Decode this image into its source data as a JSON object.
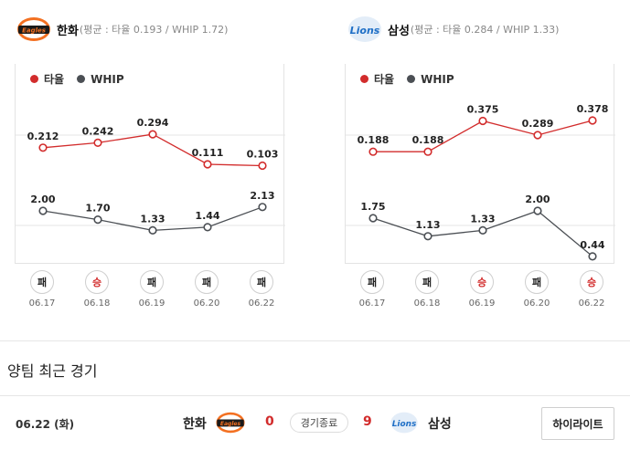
{
  "colors": {
    "avg": "#d22c2c",
    "whip": "#4b4f54",
    "win": "#d22c2c"
  },
  "legend": {
    "avg_label": "타율",
    "whip_label": "WHIP"
  },
  "teams": [
    {
      "name": "한화",
      "stats_text": "(평균 : 타율 0.193 / WHIP 1.72)",
      "logo_text": "Eagles",
      "avg": [
        0.212,
        0.242,
        0.294,
        0.111,
        0.103
      ],
      "avg_labels": [
        "0.212",
        "0.242",
        "0.294",
        "0.111",
        "0.103"
      ],
      "whip": [
        2.0,
        1.7,
        1.33,
        1.44,
        2.13
      ],
      "whip_labels": [
        "2.00",
        "1.70",
        "1.33",
        "1.44",
        "2.13"
      ],
      "games": [
        {
          "result": "패",
          "win": false,
          "date": "06.17"
        },
        {
          "result": "승",
          "win": true,
          "date": "06.18"
        },
        {
          "result": "패",
          "win": false,
          "date": "06.19"
        },
        {
          "result": "패",
          "win": false,
          "date": "06.20"
        },
        {
          "result": "패",
          "win": false,
          "date": "06.22"
        }
      ]
    },
    {
      "name": "삼성",
      "stats_text": "(평균 : 타율 0.284 / WHIP 1.33)",
      "logo_text": "Lions",
      "avg": [
        0.188,
        0.188,
        0.375,
        0.289,
        0.378
      ],
      "avg_labels": [
        "0.188",
        "0.188",
        "0.375",
        "0.289",
        "0.378"
      ],
      "whip": [
        1.75,
        1.13,
        1.33,
        2.0,
        0.44
      ],
      "whip_labels": [
        "1.75",
        "1.13",
        "1.33",
        "2.00",
        "0.44"
      ],
      "games": [
        {
          "result": "패",
          "win": false,
          "date": "06.17"
        },
        {
          "result": "패",
          "win": false,
          "date": "06.18"
        },
        {
          "result": "승",
          "win": true,
          "date": "06.19"
        },
        {
          "result": "패",
          "win": false,
          "date": "06.20"
        },
        {
          "result": "승",
          "win": true,
          "date": "06.22"
        }
      ]
    }
  ],
  "section_title": "양팀 최근 경기",
  "recent_match": {
    "date": "06.22 (화)",
    "home_team": "한화",
    "home_score": "0",
    "status": "경기종료",
    "away_score": "9",
    "away_team": "삼성",
    "highlight_label": "하이라이트"
  }
}
